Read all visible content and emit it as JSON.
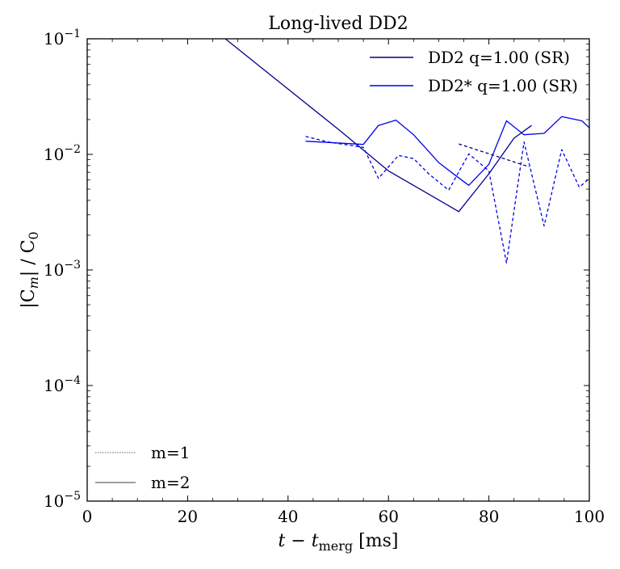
{
  "chart_data": {
    "type": "line",
    "title": "Long-lived DD2",
    "xlabel_var": "t − t",
    "xlabel_sub": "merg",
    "xlabel_unit": " [ms]",
    "ylabel": "|C_m| / C_0",
    "ylabel_parts": {
      "open": "|C",
      "m": "m",
      "mid": "| / C",
      "zero": "0"
    },
    "xlim": [
      0,
      100
    ],
    "ylim": [
      1e-05,
      0.1
    ],
    "yscale": "log",
    "x_ticks": [
      "0",
      "20",
      "40",
      "60",
      "80",
      "100"
    ],
    "y_ticks": [
      {
        "base": "10",
        "exp": "−5",
        "value": 1e-05
      },
      {
        "base": "10",
        "exp": "−4",
        "value": 0.0001
      },
      {
        "base": "10",
        "exp": "−3",
        "value": 0.001
      },
      {
        "base": "10",
        "exp": "−2",
        "value": 0.01
      },
      {
        "base": "10",
        "exp": "−1",
        "value": 0.1
      }
    ],
    "series": [
      {
        "name": "DD2 q=1.00 (SR)",
        "color": "#00008b",
        "mode": "m=2",
        "dash": "solid",
        "x": [
          10,
          27.5,
          50,
          60,
          74,
          80,
          85,
          88.5
        ],
        "y": [
          0.5,
          0.1,
          0.0165,
          0.0072,
          0.0032,
          0.0068,
          0.0138,
          0.0178
        ]
      },
      {
        "name": "DD2 q=1.00 (SR)",
        "color": "#00008b",
        "mode": "m=1",
        "dash": "dashed",
        "x": [
          74,
          88
        ],
        "y": [
          0.0123,
          0.0078
        ]
      },
      {
        "name": "DD2* q=1.00 (SR)",
        "color": "#0000ee",
        "mode": "m=2",
        "dash": "solid",
        "x": [
          43.5,
          55,
          58,
          61.5,
          65,
          70,
          73.5,
          76,
          80,
          83.5,
          87,
          91,
          94.5,
          98.5,
          100
        ],
        "y": [
          0.013,
          0.0122,
          0.0178,
          0.0198,
          0.0148,
          0.0085,
          0.0065,
          0.0054,
          0.0082,
          0.0195,
          0.0148,
          0.0152,
          0.0212,
          0.0195,
          0.017
        ]
      },
      {
        "name": "DD2* q=1.00 (SR)",
        "color": "#0000ee",
        "mode": "m=1",
        "dash": "dashed",
        "x": [
          43.5,
          48,
          55,
          58,
          62,
          65,
          68,
          72,
          76,
          80,
          83.5,
          87,
          91,
          94.5,
          98,
          100
        ],
        "y": [
          0.0143,
          0.0128,
          0.0115,
          0.0062,
          0.0098,
          0.0092,
          0.0068,
          0.0049,
          0.0101,
          0.0072,
          0.00115,
          0.0128,
          0.0024,
          0.011,
          0.0052,
          0.0062
        ]
      }
    ],
    "legend_series": [
      {
        "name": "DD2 q=1.00 (SR)",
        "color": "#00008b"
      },
      {
        "name": "DD2* q=1.00 (SR)",
        "color": "#0000ee"
      }
    ],
    "legend_series_position": "upper-right",
    "legend_modes": [
      {
        "name": "m=1",
        "style": "dotted",
        "color": "#666666"
      },
      {
        "name": "m=2",
        "style": "solid",
        "color": "#666666"
      }
    ],
    "legend_modes_position": "lower-left",
    "grid": false
  }
}
